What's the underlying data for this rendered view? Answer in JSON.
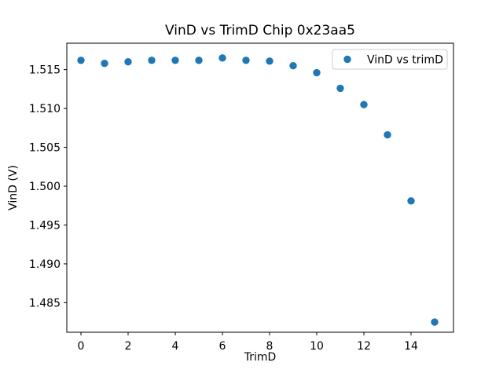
{
  "figure": {
    "background": "#ffffff"
  },
  "chart_data": {
    "type": "scatter",
    "title": "VinD vs TrimD Chip 0x23aa5",
    "xlabel": "TrimD",
    "ylabel": "VinD (V)",
    "legend_position": "upper right",
    "grid": false,
    "xlim": [
      -0.6,
      15.8
    ],
    "ylim": [
      1.4812,
      1.5184
    ],
    "x_ticks": [
      0,
      2,
      4,
      6,
      8,
      10,
      12,
      14
    ],
    "x_tick_labels": [
      "0",
      "2",
      "4",
      "6",
      "8",
      "10",
      "12",
      "14"
    ],
    "y_ticks": [
      1.485,
      1.49,
      1.495,
      1.5,
      1.505,
      1.51,
      1.515
    ],
    "y_tick_labels": [
      "1.485",
      "1.490",
      "1.495",
      "1.500",
      "1.505",
      "1.510",
      "1.515"
    ],
    "series": [
      {
        "name": "VinD vs trimD",
        "color": "#1f77b4",
        "marker": "circle",
        "x": [
          0,
          1,
          2,
          3,
          4,
          5,
          6,
          7,
          8,
          9,
          10,
          11,
          12,
          13,
          14,
          15
        ],
        "y": [
          1.5162,
          1.5158,
          1.516,
          1.5162,
          1.5162,
          1.5162,
          1.5165,
          1.5162,
          1.5161,
          1.5155,
          1.5146,
          1.5126,
          1.5105,
          1.5066,
          1.4981,
          1.4825
        ]
      }
    ]
  }
}
